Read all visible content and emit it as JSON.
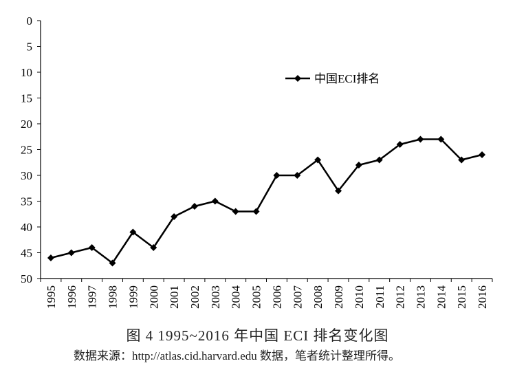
{
  "chart_data": {
    "type": "line",
    "categories": [
      "1995",
      "1996",
      "1997",
      "1998",
      "1999",
      "2000",
      "2001",
      "2002",
      "2003",
      "2004",
      "2005",
      "2006",
      "2007",
      "2008",
      "2009",
      "2010",
      "2011",
      "2012",
      "2013",
      "2014",
      "2015",
      "2016"
    ],
    "series": [
      {
        "name": "中国ECI排名",
        "values": [
          46,
          45,
          44,
          47,
          41,
          44,
          38,
          36,
          35,
          37,
          37,
          30,
          30,
          27,
          33,
          28,
          27,
          24,
          23,
          23,
          27,
          26
        ],
        "color": "#000000",
        "marker": "diamond"
      }
    ],
    "ylim": [
      0,
      50
    ],
    "y_inverted": true,
    "y_ticks": [
      "0",
      "5",
      "10",
      "15",
      "20",
      "25",
      "30",
      "35",
      "40",
      "45",
      "50"
    ],
    "xlabel": "",
    "ylabel": "",
    "grid": false,
    "legend_position": "upper-center"
  },
  "caption": {
    "title": "图 4   1995~2016 年中国 ECI 排名变化图",
    "source": "数据来源：http://atlas.cid.harvard.edu 数据，笔者统计整理所得。"
  }
}
